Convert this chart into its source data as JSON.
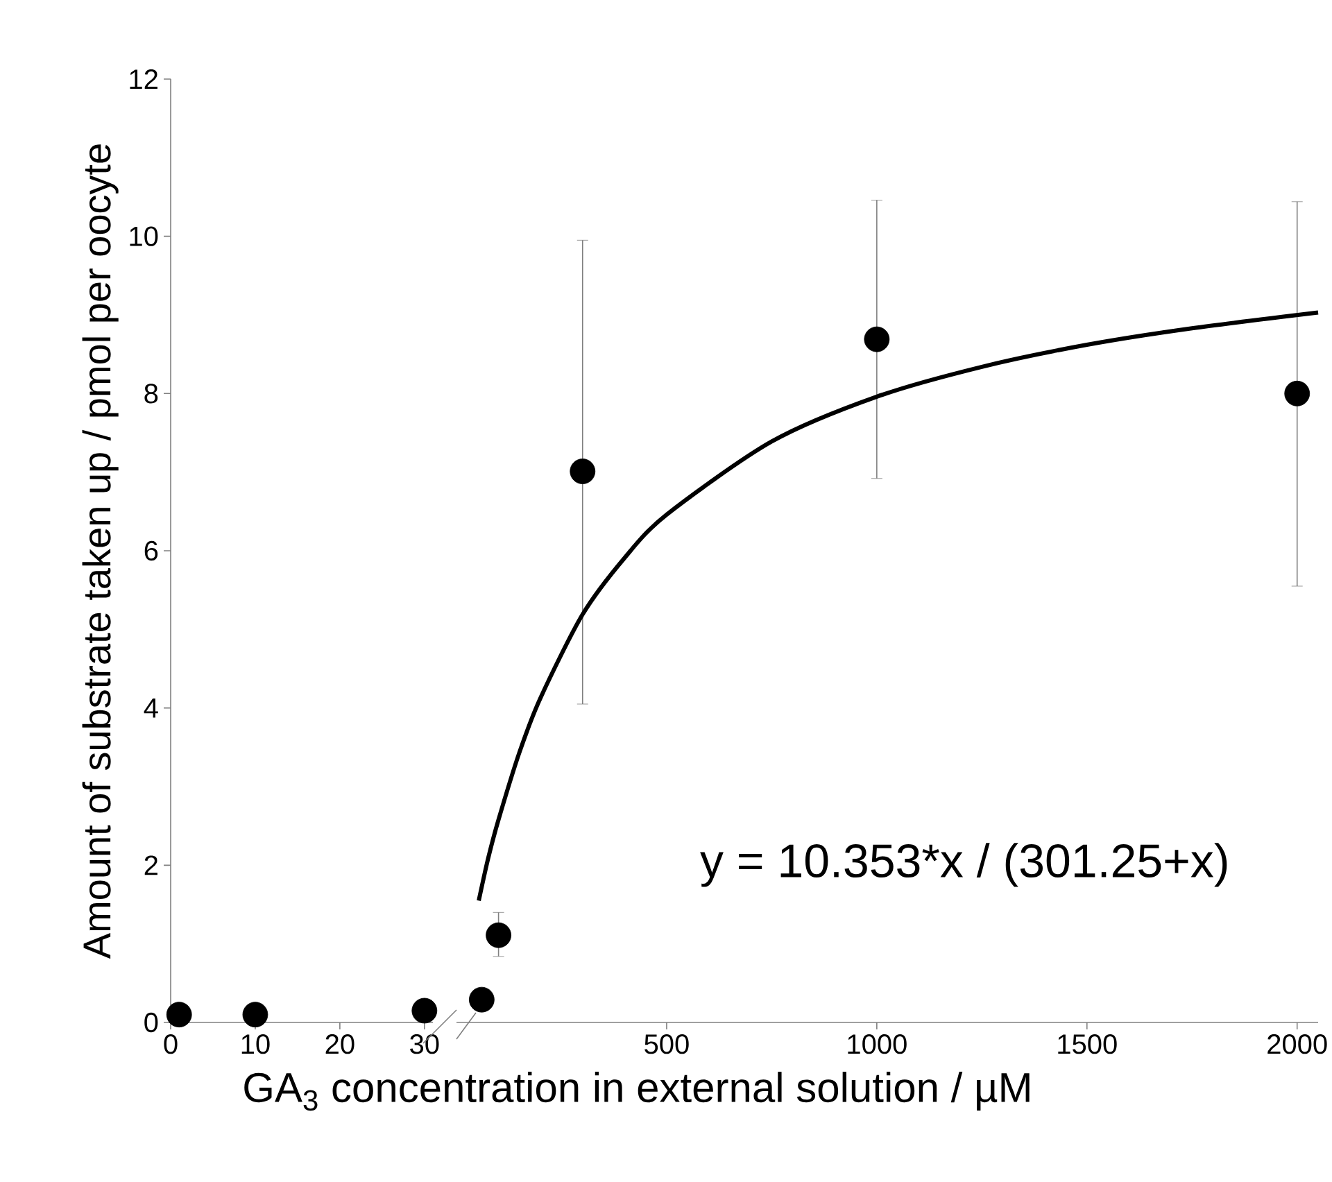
{
  "chart_data": [
    {
      "type": "scatter",
      "ylabel": "Amount of substrate taken up / pmol per oocyte",
      "xlim": [
        0,
        31
      ],
      "ylim": [
        0,
        12
      ],
      "xticks": [
        0,
        10,
        20,
        30
      ],
      "yticks": [
        0,
        2,
        4,
        6,
        8,
        10,
        12
      ],
      "series": [
        {
          "marker": "circle",
          "color": "#000000",
          "x": [
            1,
            10,
            30
          ],
          "values": [
            0.1,
            0.1,
            0.15
          ]
        }
      ]
    },
    {
      "type": "scatter",
      "xlabel": "GA$_{3}$ concentration in external solution / µM",
      "xlim": [
        0,
        2050
      ],
      "ylim": [
        0,
        12
      ],
      "xticks": [
        500,
        1000,
        1500,
        2000
      ],
      "tick_labels": "x",
      "annotations": [
        "y = 10.353*x / (301.25+x)"
      ],
      "series": [
        {
          "marker": "circle",
          "color": "#000000",
          "x": [
            60,
            100,
            300,
            1000,
            2000
          ],
          "values": [
            0.29,
            1.11,
            7.01,
            8.69,
            8.0
          ],
          "errors": [
            null,
            [
              0.84,
              1.4
            ],
            [
              4.05,
              9.95
            ],
            [
              6.92,
              10.46
            ],
            [
              5.55,
              10.44
            ]
          ]
        },
        {
          "type": "line",
          "marker": "none",
          "color": "#000000",
          "x": [
            53,
            75,
            100,
            150,
            200,
            300,
            400,
            500,
            750,
            1000,
            1250,
            1500,
            1750,
            2050
          ],
          "values": [
            1.55,
            2.08,
            2.58,
            3.44,
            4.13,
            5.19,
            5.91,
            6.46,
            7.39,
            7.96,
            8.34,
            8.62,
            8.83,
            9.03
          ]
        }
      ]
    }
  ]
}
